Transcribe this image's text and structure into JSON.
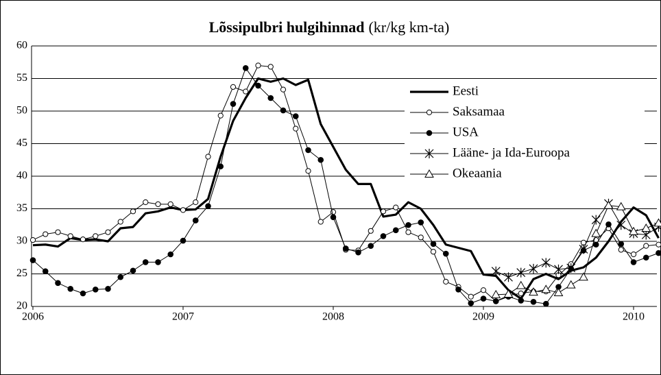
{
  "chart_data": {
    "type": "line",
    "title": "Lõssipulbri hulgihinnad",
    "subtitle": "(kr/kg km-ta)",
    "categories": [
      "2006",
      null,
      null,
      null,
      null,
      null,
      null,
      null,
      null,
      null,
      null,
      null,
      "2007",
      null,
      null,
      null,
      null,
      null,
      null,
      null,
      null,
      null,
      null,
      null,
      "2008",
      null,
      null,
      null,
      null,
      null,
      null,
      null,
      null,
      null,
      null,
      null,
      "2009",
      null,
      null,
      null,
      null,
      null,
      null,
      null,
      null,
      null,
      null,
      null,
      "2010",
      null,
      null
    ],
    "ylim": [
      20,
      60
    ],
    "yticks": [
      20,
      25,
      30,
      35,
      40,
      45,
      50,
      55,
      60
    ],
    "grid": true,
    "legend": "upper right",
    "series": [
      {
        "name": "Eesti",
        "color": "#000000",
        "marker": "none",
        "width": 3.2,
        "values": [
          29.4,
          29.5,
          29.2,
          30.5,
          30.2,
          30.3,
          30.0,
          32.0,
          32.2,
          34.3,
          34.6,
          35.2,
          34.8,
          34.9,
          36.5,
          43.0,
          48.5,
          52.0,
          55.0,
          54.5,
          55.0,
          54.0,
          54.8,
          48.0,
          44.5,
          41.0,
          38.8,
          38.8,
          33.8,
          34.1,
          36.0,
          35.0,
          32.5,
          29.5,
          29.0,
          28.5,
          24.9,
          24.7,
          22.5,
          21.2,
          24.2,
          25.0,
          24.2,
          25.5,
          26.0,
          27.5,
          30.0,
          33.0,
          35.2,
          34.0,
          30.5
        ]
      },
      {
        "name": "Saksamaa",
        "color": "#000000",
        "marker": "circle-open",
        "width": 1,
        "values": [
          30.2,
          31.1,
          31.4,
          30.8,
          30.3,
          30.8,
          31.4,
          33.0,
          34.6,
          36.0,
          35.7,
          35.7,
          34.8,
          36.0,
          43.0,
          49.3,
          53.7,
          53.0,
          57.0,
          56.8,
          53.3,
          47.3,
          40.8,
          33.0,
          34.5,
          28.7,
          28.6,
          31.6,
          34.6,
          35.2,
          31.4,
          30.6,
          28.4,
          23.8,
          23.0,
          21.5,
          22.5,
          20.8,
          21.7,
          22.0,
          22.3,
          22.3,
          24.8,
          26.5,
          29.8,
          30.2,
          32.0,
          28.7,
          28.0,
          29.3,
          29.5
        ]
      },
      {
        "name": "USA",
        "color": "#000000",
        "marker": "circle-filled",
        "width": 1,
        "values": [
          27.1,
          25.4,
          23.6,
          22.7,
          22.0,
          22.6,
          22.7,
          24.5,
          25.5,
          26.8,
          26.8,
          28.0,
          30.1,
          33.2,
          35.4,
          41.5,
          51.1,
          56.6,
          53.9,
          52.0,
          50.1,
          49.2,
          44.0,
          42.5,
          33.7,
          28.9,
          28.3,
          29.3,
          30.8,
          31.7,
          32.5,
          32.9,
          29.6,
          28.1,
          22.6,
          20.5,
          21.2,
          20.8,
          21.5,
          20.9,
          20.7,
          20.4,
          23.0,
          25.8,
          28.6,
          29.5,
          32.6,
          29.6,
          26.8,
          27.5,
          28.2
        ]
      },
      {
        "name": "Lääne- ja Ida-Euroopa",
        "color": "#000000",
        "marker": "star",
        "width": 1,
        "values": [
          null,
          null,
          null,
          null,
          null,
          null,
          null,
          null,
          null,
          null,
          null,
          null,
          null,
          null,
          null,
          null,
          null,
          null,
          null,
          null,
          null,
          null,
          null,
          null,
          null,
          null,
          null,
          null,
          null,
          null,
          null,
          null,
          null,
          null,
          null,
          null,
          null,
          25.4,
          24.5,
          25.2,
          25.8,
          26.7,
          25.7,
          25.9,
          28.8,
          33.3,
          35.8,
          32.5,
          31.2,
          31.0,
          32.2
        ]
      },
      {
        "name": "Okeaania",
        "color": "#000000",
        "marker": "triangle-open",
        "width": 1,
        "values": [
          null,
          null,
          null,
          null,
          null,
          null,
          null,
          null,
          null,
          null,
          null,
          null,
          null,
          null,
          null,
          null,
          null,
          null,
          null,
          null,
          null,
          null,
          null,
          null,
          null,
          null,
          null,
          null,
          null,
          null,
          null,
          null,
          null,
          null,
          null,
          null,
          null,
          21.8,
          21.9,
          23.2,
          22.2,
          22.6,
          22.1,
          23.3,
          24.5,
          31.2,
          35.5,
          35.3,
          31.5,
          32.0,
          32.8
        ]
      }
    ]
  }
}
